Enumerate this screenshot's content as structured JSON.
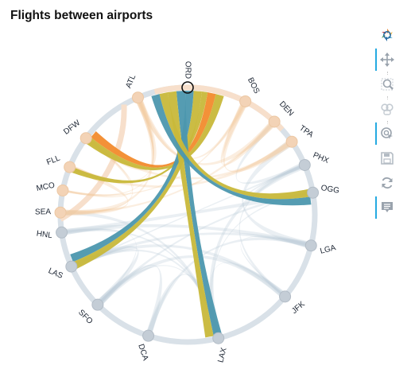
{
  "title": "Flights between airports",
  "colors": {
    "ring": "#d9e1e8",
    "ring_warm": "#f7dfcb",
    "node_cool": "#c4cdd6",
    "node_warm": "#f3d3b6",
    "highlight_stroke": "#111111",
    "toolbar_active": "#26aae1",
    "toolbar_icon": "#9aa3ad"
  },
  "toolbar": {
    "tools": [
      {
        "name": "bokeh-logo-icon",
        "active": false,
        "interactable": false
      },
      {
        "name": "pan-icon",
        "active": true,
        "interactable": true
      },
      {
        "name": "box-zoom-icon",
        "active": false,
        "interactable": true
      },
      {
        "name": "wheel-zoom-icon",
        "active": false,
        "interactable": true
      },
      {
        "name": "tap-icon",
        "active": true,
        "interactable": true
      },
      {
        "name": "save-icon",
        "active": false,
        "interactable": true
      },
      {
        "name": "reset-icon",
        "active": false,
        "interactable": true
      },
      {
        "name": "hover-icon",
        "active": true,
        "interactable": true
      }
    ]
  },
  "chart_data": {
    "type": "chord",
    "title": "Flights between airports",
    "nodes": [
      {
        "label": "ORD",
        "angle": 180,
        "group": "warm",
        "selected": true
      },
      {
        "label": "BOS",
        "angle": 153,
        "group": "warm"
      },
      {
        "label": "DEN",
        "angle": 137,
        "group": "warm"
      },
      {
        "label": "TPA",
        "angle": 125,
        "group": "warm"
      },
      {
        "label": "PHX",
        "angle": 113,
        "group": "cool"
      },
      {
        "label": "OGG",
        "angle": 100,
        "group": "cool"
      },
      {
        "label": "LGA",
        "angle": 76,
        "group": "cool"
      },
      {
        "label": "JFK",
        "angle": 50,
        "group": "cool"
      },
      {
        "label": "LAX",
        "angle": 14,
        "group": "cool"
      },
      {
        "label": "DCA",
        "angle": -18,
        "group": "cool"
      },
      {
        "label": "SFO",
        "angle": -45,
        "group": "cool"
      },
      {
        "label": "LAS",
        "angle": -66,
        "group": "cool"
      },
      {
        "label": "HNL",
        "angle": -82,
        "group": "cool"
      },
      {
        "label": "SEA",
        "angle": -91,
        "group": "warm"
      },
      {
        "label": "MCO",
        "angle": -101,
        "group": "warm"
      },
      {
        "label": "FLL",
        "angle": -112,
        "group": "warm"
      },
      {
        "label": "DFW",
        "angle": -127,
        "group": "warm"
      },
      {
        "label": "ATL",
        "angle": -157,
        "group": "warm"
      }
    ],
    "highlighted_chords": [
      {
        "from": "ORD",
        "to": "LAX",
        "color": "#4c97ae",
        "weight": 0.85
      },
      {
        "from": "ORD",
        "to": "LAX",
        "color": "#c8b83a",
        "weight": 0.85
      },
      {
        "from": "ORD",
        "to": "LAS",
        "color": "#c8b83a",
        "weight": 0.8
      },
      {
        "from": "ORD",
        "to": "LAS",
        "color": "#4c97ae",
        "weight": 0.8
      },
      {
        "from": "ORD",
        "to": "OGG",
        "color": "#c8b83a",
        "weight": 0.8
      },
      {
        "from": "ORD",
        "to": "OGG",
        "color": "#4c97ae",
        "weight": 0.8
      },
      {
        "from": "ORD",
        "to": "DFW",
        "color": "#c8b83a",
        "weight": 0.8
      },
      {
        "from": "ORD",
        "to": "DFW",
        "color": "#f28b2d",
        "weight": 0.8
      },
      {
        "from": "ORD",
        "to": "FLL",
        "color": "#c8b83a",
        "weight": 0.55
      }
    ],
    "background_chords": [
      [
        "LAX",
        "JFK"
      ],
      [
        "LAX",
        "SFO"
      ],
      [
        "LAX",
        "LAS"
      ],
      [
        "LAX",
        "DCA"
      ],
      [
        "LAX",
        "PHX"
      ],
      [
        "LAX",
        "OGG"
      ],
      [
        "LAX",
        "HNL"
      ],
      [
        "LAX",
        "SEA"
      ],
      [
        "JFK",
        "LAS"
      ],
      [
        "JFK",
        "SFO"
      ],
      [
        "JFK",
        "LGA"
      ],
      [
        "JFK",
        "PHX"
      ],
      [
        "DCA",
        "LGA"
      ],
      [
        "DCA",
        "SFO"
      ],
      [
        "SFO",
        "LAS"
      ],
      [
        "SFO",
        "HNL"
      ],
      [
        "SFO",
        "OGG"
      ],
      [
        "LGA",
        "LAS"
      ],
      [
        "LGA",
        "HNL"
      ],
      [
        "LGA",
        "TPA"
      ],
      [
        "LAS",
        "PHX"
      ],
      [
        "PHX",
        "OGG"
      ],
      [
        "PHX",
        "DEN"
      ],
      [
        "HNL",
        "OGG"
      ],
      [
        "ATL",
        "DFW"
      ],
      [
        "ATL",
        "MCO"
      ],
      [
        "ATL",
        "FLL"
      ],
      [
        "ATL",
        "BOS"
      ],
      [
        "ATL",
        "SEA"
      ],
      [
        "ATL",
        "DEN"
      ],
      [
        "DFW",
        "MCO"
      ],
      [
        "DFW",
        "SEA"
      ],
      [
        "DFW",
        "TPA"
      ],
      [
        "BOS",
        "DEN"
      ],
      [
        "BOS",
        "TPA"
      ],
      [
        "BOS",
        "MCO"
      ],
      [
        "DEN",
        "SEA"
      ],
      [
        "TPA",
        "FLL"
      ],
      [
        "SEA",
        "FLL"
      ]
    ]
  }
}
